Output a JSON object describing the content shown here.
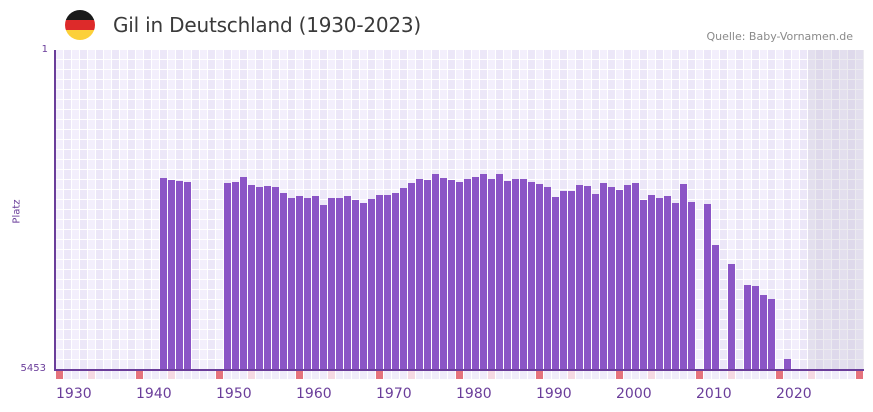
{
  "header": {
    "title": "Gil in Deutschland (1930-2023)",
    "source": "Quelle: Baby-Vornamen.de",
    "flag_colors": [
      "#1a1a1a",
      "#dd2a2a",
      "#fcd03a"
    ]
  },
  "colors": {
    "bar": "#8b55c6",
    "axis": "#6a3d9a",
    "grid_a": "#f3effc",
    "grid_b": "#ece7f8",
    "tick_decade": "#e5737d",
    "tick_mid": "#f5d8e2",
    "tick_other": "#f0ecfa"
  },
  "chart_data": {
    "type": "bar",
    "title": "Gil in Deutschland (1930-2023)",
    "xlabel": "",
    "ylabel": "Platz",
    "y_inverted": true,
    "ylim": [
      1,
      5453
    ],
    "y_tick_labels": [
      "1",
      "5453"
    ],
    "xlim": [
      1930,
      2030
    ],
    "x_tick_labels": [
      "1930",
      "1940",
      "1950",
      "1960",
      "1970",
      "1980",
      "1990",
      "2000",
      "2010",
      "2020"
    ],
    "grid": true,
    "shaded_region_from": 2024,
    "series": [
      {
        "name": "Platz",
        "x": [
          1943,
          1944,
          1945,
          1946,
          1951,
          1952,
          1953,
          1954,
          1955,
          1956,
          1957,
          1958,
          1959,
          1960,
          1961,
          1962,
          1963,
          1964,
          1965,
          1966,
          1967,
          1968,
          1969,
          1970,
          1971,
          1972,
          1973,
          1974,
          1975,
          1976,
          1977,
          1978,
          1979,
          1980,
          1981,
          1982,
          1983,
          1984,
          1985,
          1986,
          1987,
          1988,
          1989,
          1990,
          1991,
          1992,
          1993,
          1994,
          1995,
          1996,
          1997,
          1998,
          1999,
          2000,
          2001,
          2002,
          2003,
          2004,
          2005,
          2006,
          2007,
          2008,
          2009,
          2011,
          2012,
          2014,
          2016,
          2017,
          2018,
          2019,
          2021
        ],
        "values": [
          2182,
          2216,
          2233,
          2250,
          2267,
          2250,
          2165,
          2301,
          2335,
          2318,
          2335,
          2438,
          2523,
          2489,
          2523,
          2489,
          2642,
          2523,
          2523,
          2489,
          2557,
          2608,
          2540,
          2472,
          2472,
          2438,
          2353,
          2267,
          2199,
          2216,
          2114,
          2182,
          2216,
          2250,
          2199,
          2165,
          2114,
          2199,
          2114,
          2233,
          2199,
          2199,
          2250,
          2284,
          2335,
          2506,
          2404,
          2404,
          2301,
          2318,
          2455,
          2267,
          2335,
          2387,
          2301,
          2267,
          2557,
          2472,
          2523,
          2489,
          2608,
          2284,
          2591,
          2625,
          3324,
          3648,
          4006,
          4023,
          4176,
          4244,
          5267
        ]
      }
    ]
  }
}
